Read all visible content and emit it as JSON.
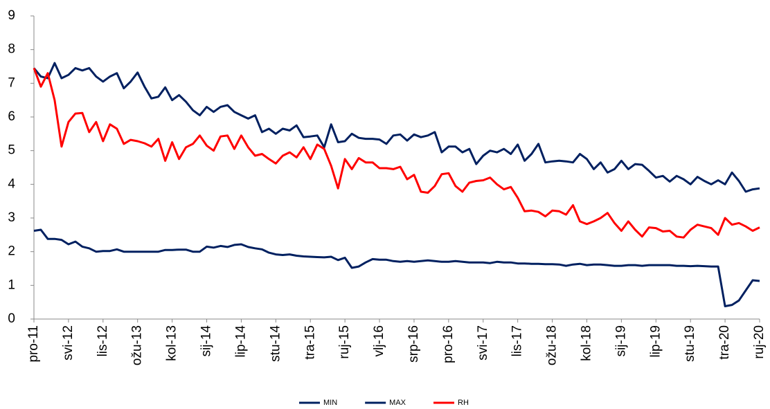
{
  "chart_data": {
    "type": "line",
    "categories": [
      "pro-11",
      null,
      null,
      null,
      null,
      "svi-12",
      null,
      null,
      null,
      null,
      "lis-12",
      null,
      null,
      null,
      null,
      "ožu-13",
      null,
      null,
      null,
      null,
      "kol-13",
      null,
      null,
      null,
      null,
      "sij-14",
      null,
      null,
      null,
      null,
      "lip-14",
      null,
      null,
      null,
      null,
      "stu-14",
      null,
      null,
      null,
      null,
      "tra-15",
      null,
      null,
      null,
      null,
      "ruj-15",
      null,
      null,
      null,
      null,
      "vlj-16",
      null,
      null,
      null,
      null,
      "srp-16",
      null,
      null,
      null,
      null,
      "pro-16",
      null,
      null,
      null,
      null,
      "svi-17",
      null,
      null,
      null,
      null,
      "lis-17",
      null,
      null,
      null,
      null,
      "ožu-18",
      null,
      null,
      null,
      null,
      "kol-18",
      null,
      null,
      null,
      null,
      "sij-19",
      null,
      null,
      null,
      null,
      "lip-19",
      null,
      null,
      null,
      null,
      "stu-19",
      null,
      null,
      null,
      null,
      "tra-20",
      null,
      null,
      null,
      null,
      "ruj-20"
    ],
    "series": [
      {
        "name": "MIN",
        "color": "#002060",
        "values": [
          2.62,
          2.65,
          2.38,
          2.38,
          2.35,
          2.22,
          2.3,
          2.15,
          2.1,
          2.0,
          2.02,
          2.02,
          2.07,
          2.0,
          2.0,
          2.0,
          2.0,
          2.0,
          2.0,
          2.05,
          2.05,
          2.06,
          2.06,
          2.0,
          2.0,
          2.15,
          2.12,
          2.17,
          2.14,
          2.2,
          2.22,
          2.14,
          2.1,
          2.07,
          1.97,
          1.92,
          1.9,
          1.92,
          1.88,
          1.86,
          1.85,
          1.84,
          1.83,
          1.85,
          1.75,
          1.82,
          1.52,
          1.56,
          1.68,
          1.78,
          1.76,
          1.76,
          1.72,
          1.7,
          1.72,
          1.7,
          1.72,
          1.74,
          1.72,
          1.7,
          1.7,
          1.72,
          1.7,
          1.68,
          1.68,
          1.68,
          1.66,
          1.7,
          1.68,
          1.68,
          1.65,
          1.65,
          1.64,
          1.64,
          1.63,
          1.63,
          1.62,
          1.58,
          1.62,
          1.64,
          1.6,
          1.62,
          1.62,
          1.6,
          1.58,
          1.58,
          1.6,
          1.6,
          1.58,
          1.6,
          1.6,
          1.6,
          1.6,
          1.58,
          1.58,
          1.57,
          1.58,
          1.57,
          1.56,
          1.56,
          0.38,
          0.42,
          0.55,
          0.85,
          1.15,
          1.13
        ]
      },
      {
        "name": "MAX",
        "color": "#002060",
        "values": [
          7.45,
          7.2,
          7.15,
          7.6,
          7.15,
          7.25,
          7.45,
          7.38,
          7.45,
          7.2,
          7.05,
          7.2,
          7.3,
          6.85,
          7.05,
          7.32,
          6.9,
          6.55,
          6.6,
          6.88,
          6.5,
          6.65,
          6.45,
          6.2,
          6.05,
          6.3,
          6.15,
          6.3,
          6.35,
          6.15,
          6.05,
          5.95,
          6.05,
          5.55,
          5.65,
          5.5,
          5.65,
          5.6,
          5.75,
          5.4,
          5.42,
          5.45,
          5.1,
          5.78,
          5.25,
          5.28,
          5.5,
          5.38,
          5.35,
          5.35,
          5.33,
          5.2,
          5.45,
          5.48,
          5.3,
          5.48,
          5.4,
          5.45,
          5.55,
          4.95,
          5.12,
          5.12,
          4.95,
          5.05,
          4.6,
          4.85,
          5.0,
          4.95,
          5.05,
          4.9,
          5.18,
          4.7,
          4.9,
          5.2,
          4.65,
          4.68,
          4.7,
          4.68,
          4.65,
          4.9,
          4.75,
          4.45,
          4.65,
          4.35,
          4.45,
          4.7,
          4.45,
          4.6,
          4.58,
          4.4,
          4.2,
          4.25,
          4.08,
          4.25,
          4.15,
          4.0,
          4.22,
          4.1,
          4.0,
          4.12,
          4.0,
          4.35,
          4.1,
          3.78,
          3.85,
          3.88
        ]
      },
      {
        "name": "RH",
        "color": "#ff0000",
        "values": [
          7.45,
          6.9,
          7.3,
          6.5,
          5.12,
          5.85,
          6.1,
          6.12,
          5.55,
          5.85,
          5.28,
          5.78,
          5.65,
          5.2,
          5.32,
          5.28,
          5.22,
          5.12,
          5.35,
          4.7,
          5.25,
          4.75,
          5.1,
          5.2,
          5.45,
          5.15,
          5.0,
          5.42,
          5.45,
          5.05,
          5.45,
          5.1,
          4.85,
          4.9,
          4.75,
          4.62,
          4.85,
          4.95,
          4.8,
          5.1,
          4.75,
          5.18,
          5.05,
          4.55,
          3.88,
          4.75,
          4.45,
          4.78,
          4.65,
          4.65,
          4.48,
          4.48,
          4.45,
          4.52,
          4.15,
          4.28,
          3.78,
          3.75,
          3.95,
          4.3,
          4.33,
          3.95,
          3.78,
          4.05,
          4.1,
          4.12,
          4.2,
          4.0,
          3.85,
          3.92,
          3.6,
          3.2,
          3.22,
          3.18,
          3.05,
          3.22,
          3.2,
          3.1,
          3.38,
          2.9,
          2.82,
          2.9,
          3.0,
          3.15,
          2.85,
          2.62,
          2.9,
          2.65,
          2.45,
          2.72,
          2.7,
          2.6,
          2.62,
          2.45,
          2.42,
          2.65,
          2.8,
          2.75,
          2.7,
          2.5,
          3.0,
          2.8,
          2.85,
          2.75,
          2.62,
          2.72
        ]
      }
    ],
    "ylim": [
      0,
      9
    ],
    "yticks": [
      0,
      1,
      2,
      3,
      4,
      5,
      6,
      7,
      8,
      9
    ],
    "grid": false,
    "legend": "bottom"
  }
}
